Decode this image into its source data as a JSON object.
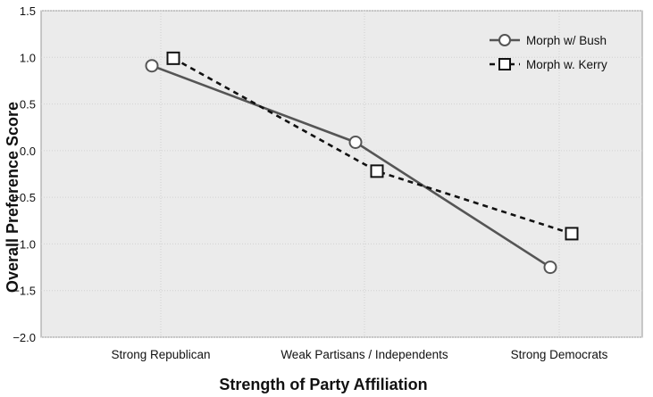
{
  "chart_data": {
    "type": "line",
    "categories": [
      "Strong Republican",
      "Weak Partisans / Independents",
      "Strong Democrats"
    ],
    "series": [
      {
        "name": "Morph w/ Bush",
        "values": [
          0.91,
          0.09,
          -1.25
        ],
        "marker": "circle",
        "line_style": "solid",
        "color": "#555555"
      },
      {
        "name": "Morph w. Kerry",
        "values": [
          0.99,
          -0.22,
          -0.89
        ],
        "marker": "square",
        "line_style": "dashed",
        "color": "#111111"
      }
    ],
    "xlabel": "Strength of Party Affiliation",
    "ylabel": "Overall Preference Score",
    "ylim": [
      -2.0,
      1.5
    ],
    "yticks": [
      "1.5",
      "1.0",
      "0.5",
      "0.0",
      "−0.5",
      "−1.0",
      "−1.5",
      "−2.0"
    ],
    "ytick_values": [
      1.5,
      1.0,
      0.5,
      0.0,
      -0.5,
      -1.0,
      -1.5,
      -2.0
    ],
    "grid": true,
    "legend_position": "top-right",
    "plot_background": "#ebebeb"
  }
}
